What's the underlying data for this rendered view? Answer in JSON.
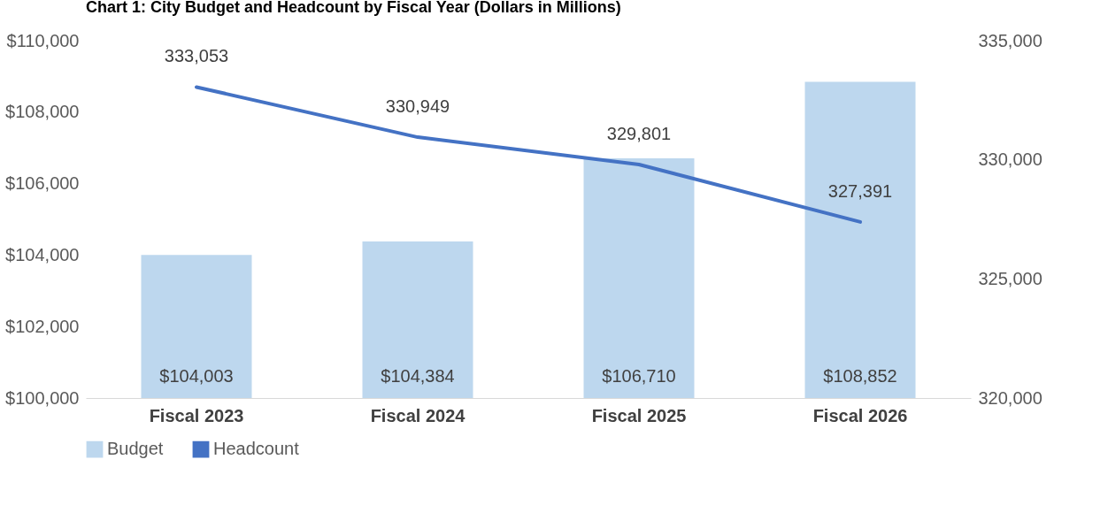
{
  "chart_data": {
    "type": "bar",
    "title": "Chart 1: City Budget and Headcount by Fiscal Year (Dollars in Millions)",
    "categories": [
      "Fiscal 2023",
      "Fiscal 2024",
      "Fiscal 2025",
      "Fiscal 2026"
    ],
    "series": [
      {
        "name": "Budget",
        "color": "#bdd7ee",
        "values": [
          104003,
          104384,
          106710,
          108852
        ],
        "value_labels": [
          "$104,003",
          "$104,384",
          "$106,710",
          "$108,852"
        ]
      },
      {
        "name": "Headcount",
        "type": "line",
        "axis": "y2",
        "color": "#4472c4",
        "values": [
          333053,
          330949,
          329801,
          327391
        ],
        "value_labels": [
          "333,053",
          "330,949",
          "329,801",
          "327,391"
        ]
      }
    ],
    "ylim": [
      100000,
      110000
    ],
    "yticks": [
      {
        "value": 100000,
        "label": "$100,000"
      },
      {
        "value": 102000,
        "label": "$102,000"
      },
      {
        "value": 104000,
        "label": "$104,000"
      },
      {
        "value": 106000,
        "label": "$106,000"
      },
      {
        "value": 108000,
        "label": "$108,000"
      },
      {
        "value": 110000,
        "label": "$110,000"
      }
    ],
    "y2lim": [
      320000,
      335000
    ],
    "y2ticks": [
      {
        "value": 320000,
        "label": "320,000"
      },
      {
        "value": 325000,
        "label": "325,000"
      },
      {
        "value": 330000,
        "label": "330,000"
      },
      {
        "value": 335000,
        "label": "335,000"
      }
    ],
    "legend": "bottom",
    "grid": false
  }
}
